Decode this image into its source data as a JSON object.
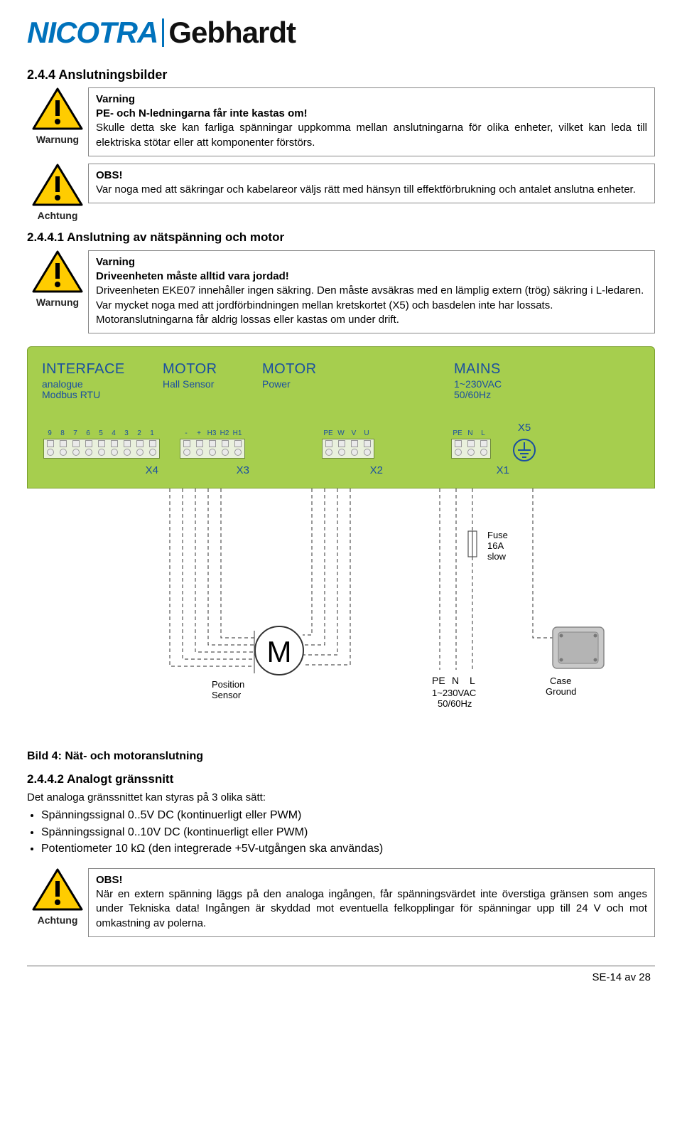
{
  "logo": {
    "left": "NICOTRA",
    "right": "Gebhardt"
  },
  "sec_244": "2.4.4  Anslutningsbilder",
  "w1": {
    "label": "Warnung",
    "title": "Varning",
    "line1": "PE- och N-ledningarna får inte kastas om!",
    "body": "Skulle detta ske kan farliga spänningar uppkomma mellan anslutningarna för olika enheter, vilket kan leda till elektriska stötar eller att komponenter förstörs."
  },
  "w2": {
    "label": "Achtung",
    "title": "OBS!",
    "body": "Var noga med att säkringar och kabelareor väljs rätt med hänsyn till effektförbrukning och antalet anslutna enheter."
  },
  "sec_2441": "2.4.4.1  Anslutning av nätspänning och motor",
  "w3": {
    "label": "Warnung",
    "title": "Varning",
    "l1": "Driveenheten måste alltid vara jordad!",
    "l2": "Driveenheten EKE07 innehåller ingen säkring. Den måste avsäkras med en lämplig extern (trög) säkring i L-ledaren.",
    "l3": "Var mycket noga med att jordförbindningen mellan kretskortet (X5) och basdelen inte har lossats.",
    "l4": "Motoranslutningarna får aldrig lossas eller kastas om under drift."
  },
  "board": {
    "interface": {
      "h": "INTERFACE",
      "s1": "analogue",
      "s2": "Modbus RTU"
    },
    "motor1": {
      "h": "MOTOR",
      "s1": "Hall Sensor"
    },
    "motor2": {
      "h": "MOTOR",
      "s1": "Power"
    },
    "mains": {
      "h": "MAINS",
      "s1": "1~230VAC",
      "s2": "50/60Hz"
    },
    "x4pins": [
      "9",
      "8",
      "7",
      "6",
      "5",
      "4",
      "3",
      "2",
      "1"
    ],
    "x3top": [
      "-",
      "+",
      "H3",
      "H2",
      "H1"
    ],
    "x2top": [
      "PE",
      "W",
      "V",
      "U"
    ],
    "x1top": [
      "PE",
      "N",
      "L"
    ],
    "x4": "X4",
    "x3": "X3",
    "x2": "X2",
    "x1": "X1",
    "x5": "X5"
  },
  "diagram": {
    "fuse1": "Fuse",
    "fuse2": "16A",
    "fuse3": "slow",
    "M": "M",
    "pos": "Position",
    "sens": "Sensor",
    "pe": "PE",
    "n": "N",
    "l": "L",
    "mv": "1~230VAC",
    "mhz": "50/60Hz",
    "case1": "Case",
    "case2": "Ground"
  },
  "caption": "Bild 4: Nät- och motoranslutning",
  "sec_2442": "2.4.4.2  Analogt gränssnitt",
  "analog_intro": "Det analoga gränssnittet kan styras på 3 olika sätt:",
  "analog_b1": "Spänningssignal 0..5V DC (kontinuerligt eller PWM)",
  "analog_b2": "Spänningssignal 0..10V DC (kontinuerligt eller PWM)",
  "analog_b3": "Potentiometer 10 kΩ (den integrerade +5V-utgången ska användas)",
  "w4": {
    "label": "Achtung",
    "title": "OBS!",
    "body": "När en extern spänning läggs på den analoga ingången, får spänningsvärdet inte överstiga gränsen som anges under Tekniska data! Ingången är skyddad mot eventuella felkopplingar för spänningar upp till 24 V och mot omkastning av polerna."
  },
  "footer": "SE-14 av 28",
  "colors": {
    "warn_yellow": "#ffcc00",
    "board_green": "#a6ce4e",
    "label_blue": "#1a4fa0",
    "logo_blue": "#0072bc"
  }
}
